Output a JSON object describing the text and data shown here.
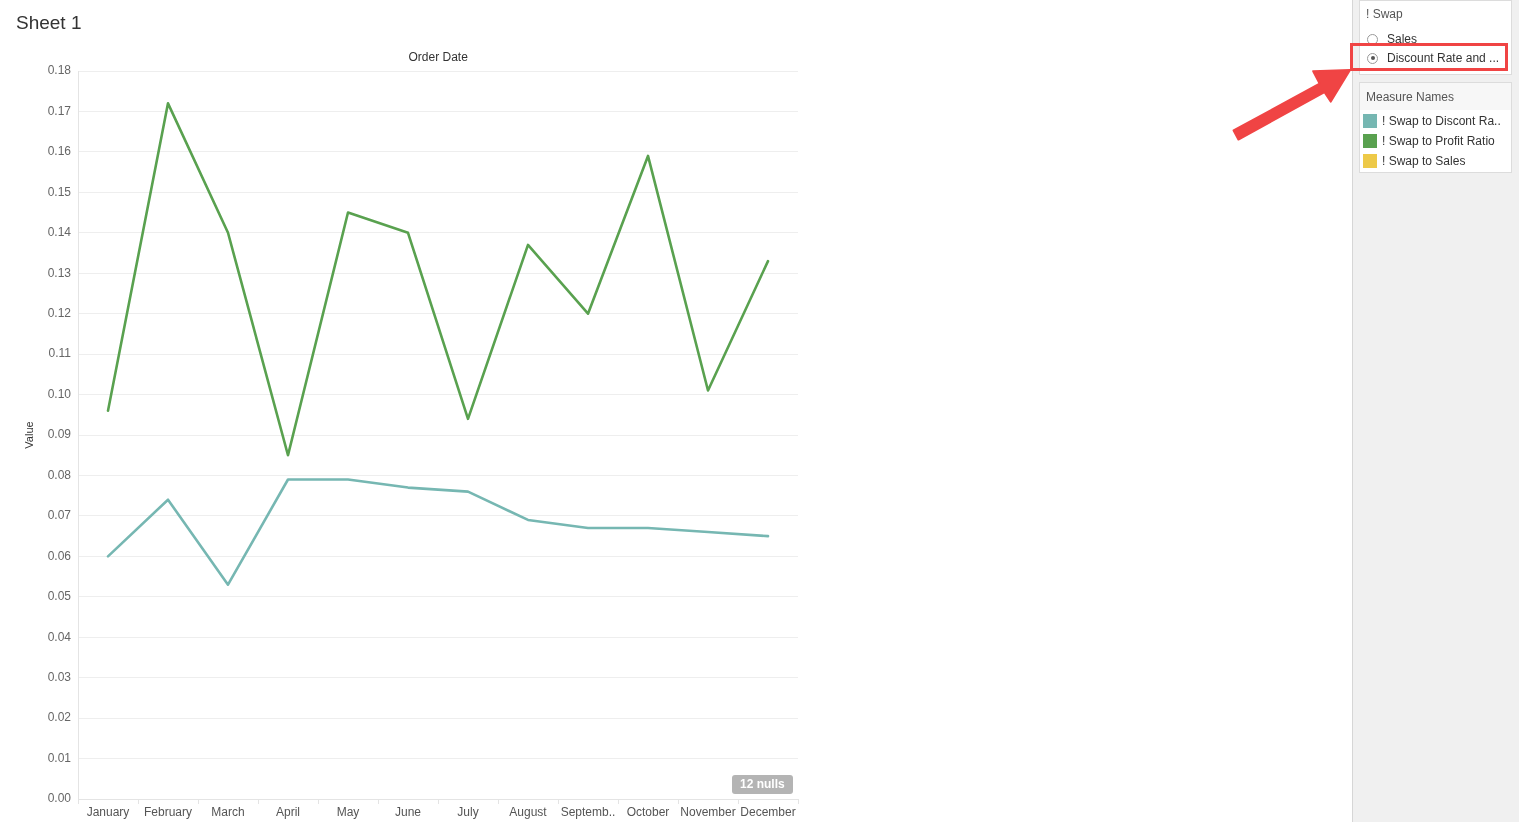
{
  "chart_data": {
    "type": "line",
    "title": "Sheet 1",
    "xlabel": "Order Date",
    "ylabel": "Value",
    "legend_title": "Measure Names",
    "categories": [
      "January",
      "February",
      "March",
      "April",
      "May",
      "June",
      "July",
      "August",
      "Septemb..",
      "October",
      "November",
      "December"
    ],
    "series": [
      {
        "name": "! Swap to Discont Ra..",
        "color": "#76b7b2",
        "values": [
          0.06,
          0.074,
          0.053,
          0.079,
          0.079,
          0.077,
          0.076,
          0.069,
          0.067,
          0.067,
          0.066,
          0.065
        ]
      },
      {
        "name": "! Swap to Profit Ratio",
        "color": "#59a14f",
        "values": [
          0.096,
          0.172,
          0.14,
          0.085,
          0.145,
          0.14,
          0.094,
          0.137,
          0.12,
          0.159,
          0.101,
          0.133
        ]
      },
      {
        "name": "! Swap to Sales",
        "color": "#edc948",
        "values": [
          null,
          null,
          null,
          null,
          null,
          null,
          null,
          null,
          null,
          null,
          null,
          null
        ]
      }
    ],
    "ylim": [
      0,
      0.18
    ],
    "yticks": [
      {
        "value": 0,
        "label": "0.00"
      },
      0.01,
      0.02,
      0.03,
      0.04,
      0.05,
      0.06,
      0.07,
      0.08,
      0.09,
      {
        "value": 0.1,
        "label": "0.10"
      },
      0.11,
      0.12,
      0.13,
      0.14,
      0.15,
      0.16,
      0.17,
      0.18
    ],
    "grid": "y",
    "legend": "right",
    "annotations": [
      "12 nulls",
      "! Swap",
      "Sales",
      "Discount Rate and ..."
    ]
  }
}
